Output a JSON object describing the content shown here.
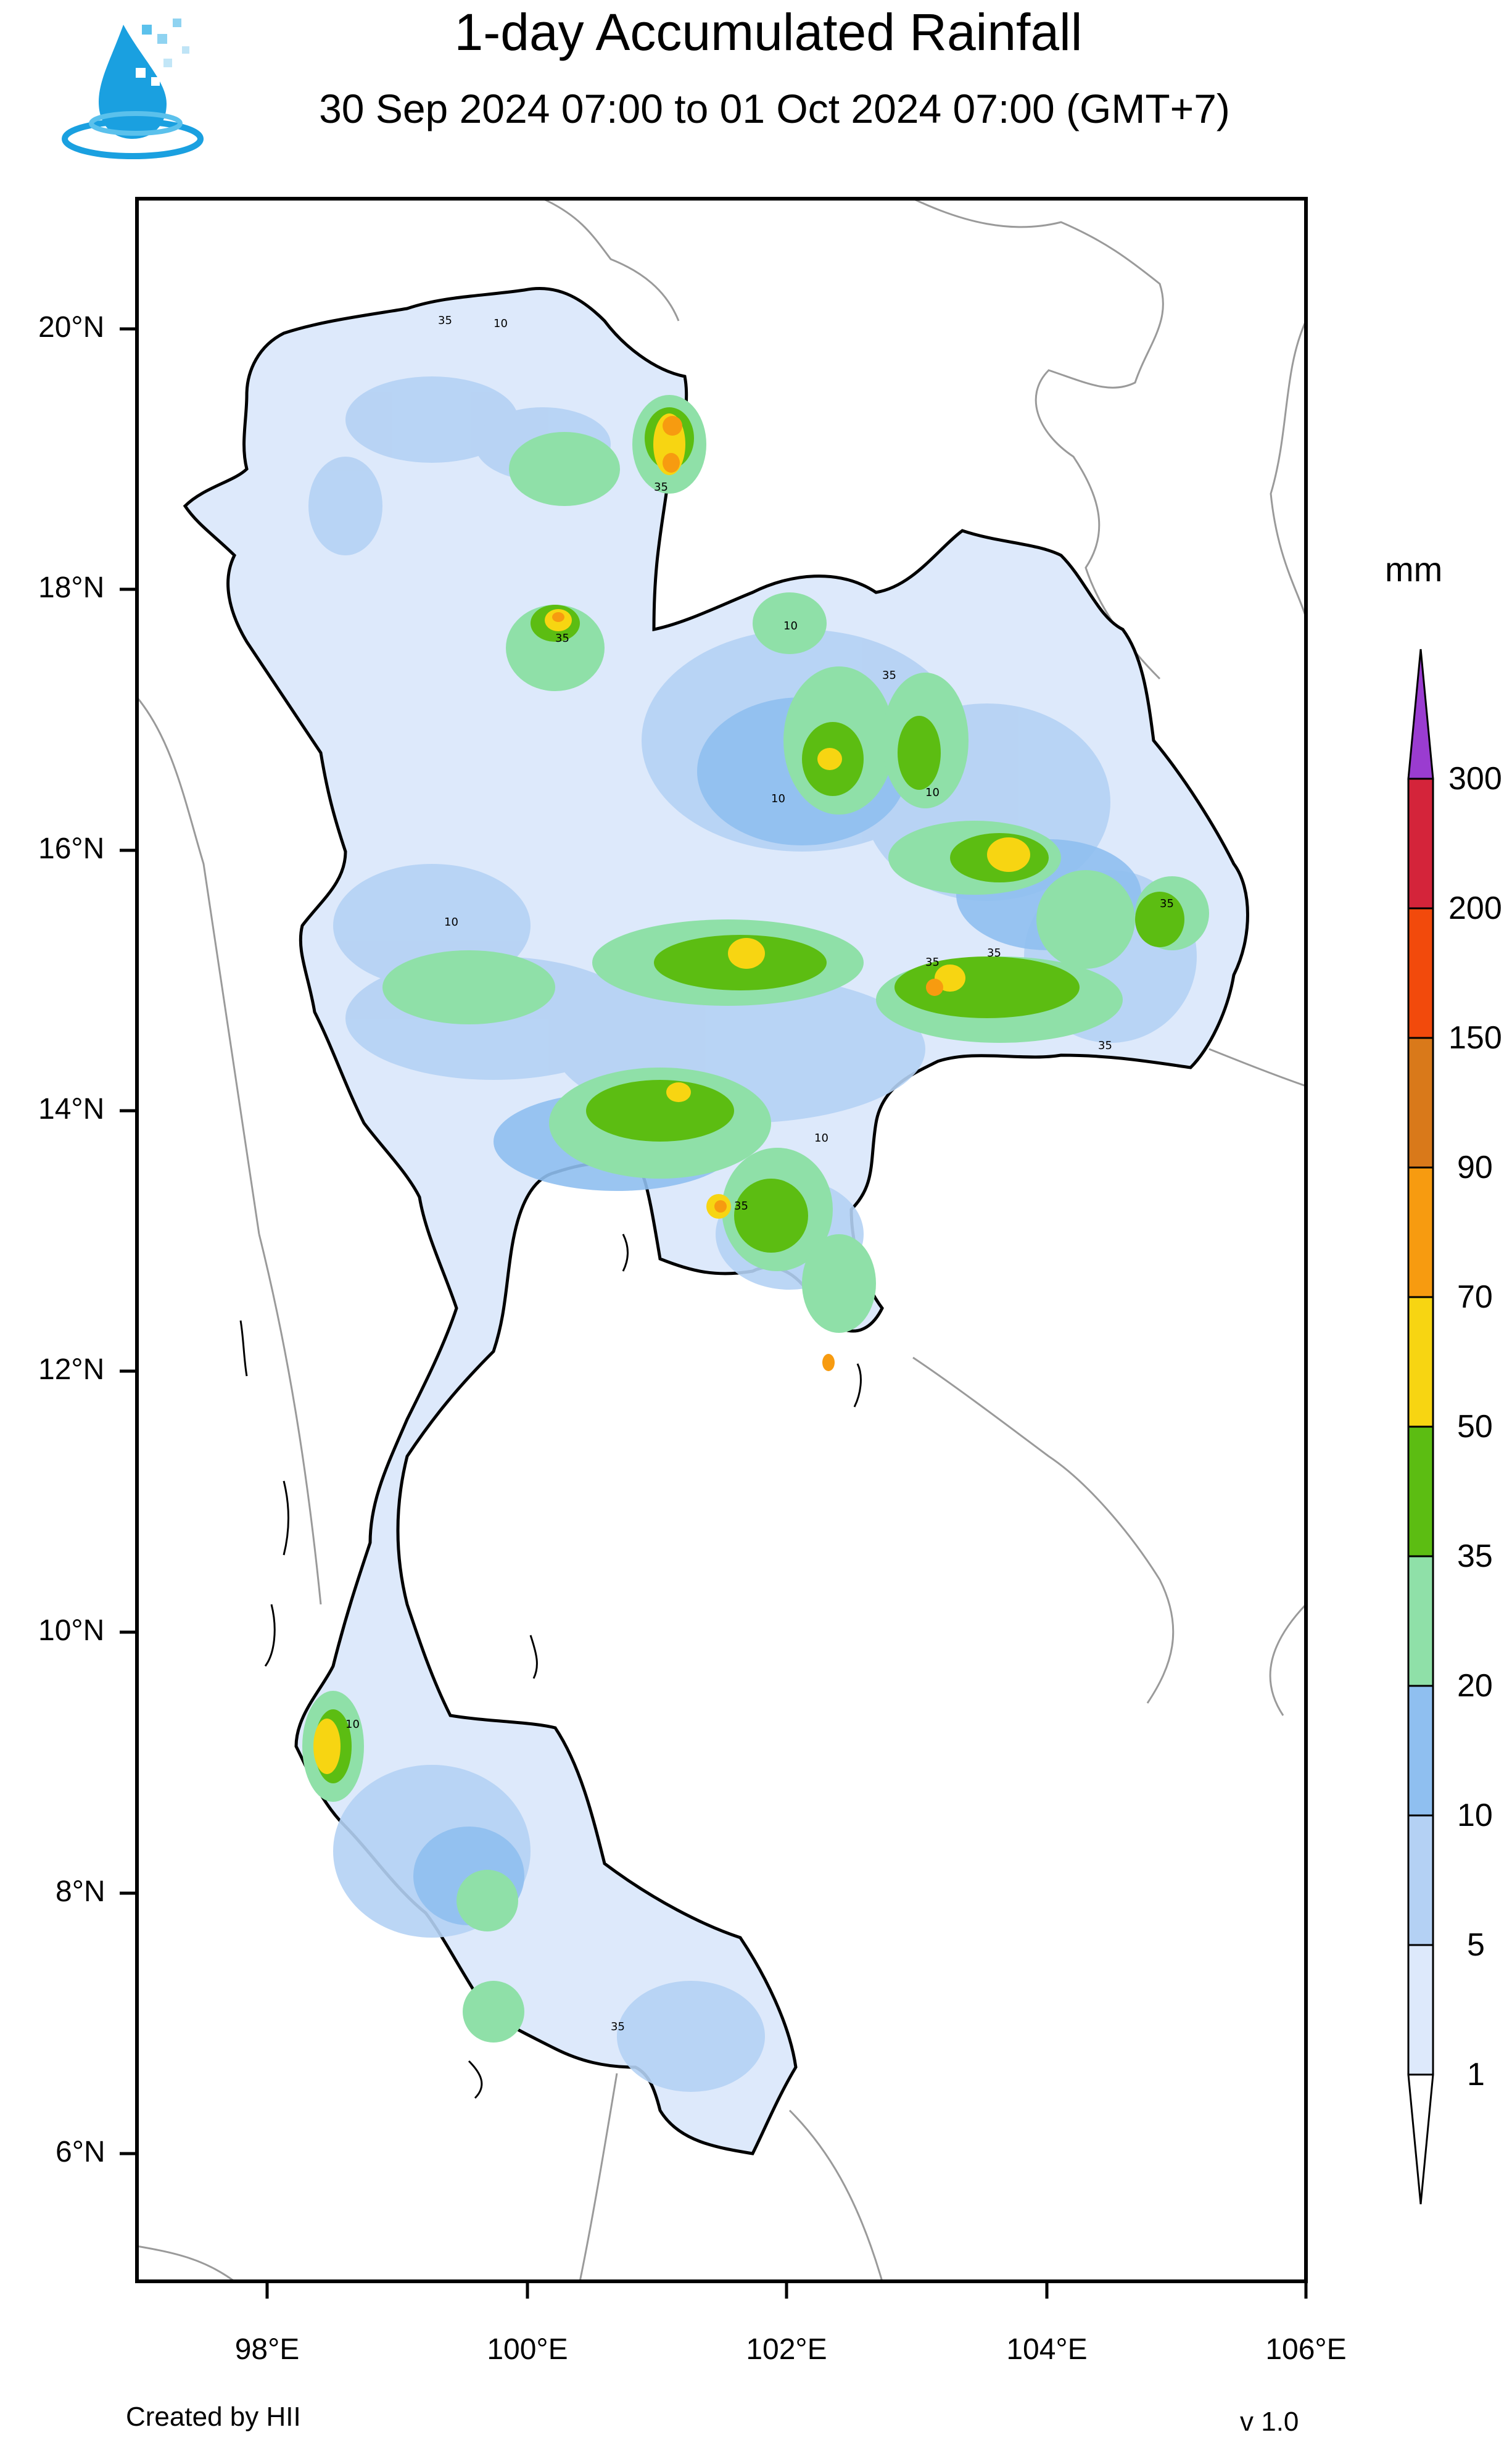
{
  "title": "1-day Accumulated Rainfall",
  "subtitle": "30 Sep 2024 07:00 to 01 Oct 2024 07:00 (GMT+7)",
  "credit": "Created by HII",
  "version": "v 1.0",
  "logo_icon": "water-drop-logo-icon",
  "axes": {
    "lat_labels": [
      "20°N",
      "18°N",
      "16°N",
      "14°N",
      "12°N",
      "10°N",
      "8°N",
      "6°N"
    ],
    "lon_labels": [
      "98°E",
      "100°E",
      "102°E",
      "104°E",
      "106°E"
    ]
  },
  "colorbar": {
    "unit": "mm",
    "levels": [
      "1",
      "5",
      "10",
      "20",
      "35",
      "50",
      "70",
      "90",
      "150",
      "200",
      "300"
    ],
    "colors": [
      "#dde9fb",
      "#b4d1f4",
      "#8fbff0",
      "#8fe0a8",
      "#5cbd12",
      "#f7d512",
      "#f79b10",
      "#d9791a",
      "#f24a0c",
      "#d4243a",
      "#a3162e",
      "#9a3cd0"
    ]
  },
  "contour_labels": [
    "10",
    "35"
  ]
}
